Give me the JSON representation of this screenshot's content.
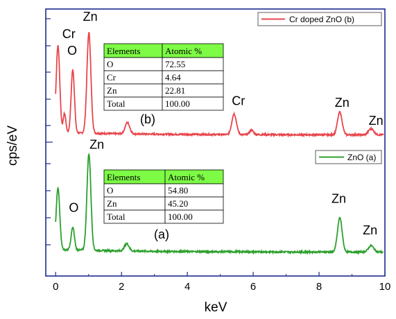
{
  "chart_data": {
    "type": "line",
    "xlabel": "keV",
    "ylabel": "cps/eV",
    "xlim": [
      -0.3,
      10
    ],
    "xticks": [
      0,
      2,
      4,
      6,
      8,
      10
    ],
    "grid": false,
    "legend_placement": "top-right",
    "panels": [
      {
        "id": "b",
        "panel_label": "(b)",
        "series_name": "Cr doped ZnO (b)",
        "color": "#e8454b",
        "peaks": [
          {
            "x": 0.07,
            "y": 1.0,
            "w": 0.055
          },
          {
            "x": 0.27,
            "y": 0.22,
            "w": 0.04
          },
          {
            "x": 0.52,
            "y": 0.73,
            "w": 0.05
          },
          {
            "x": 1.01,
            "y": 1.16,
            "w": 0.06
          },
          {
            "x": 2.18,
            "y": 0.13,
            "w": 0.07
          },
          {
            "x": 5.42,
            "y": 0.24,
            "w": 0.07
          },
          {
            "x": 5.95,
            "y": 0.05,
            "w": 0.06
          },
          {
            "x": 8.63,
            "y": 0.26,
            "w": 0.07
          },
          {
            "x": 9.58,
            "y": 0.07,
            "w": 0.08
          }
        ],
        "peak_labels": [
          {
            "text": "Cr",
            "x": 0.4,
            "y": 1.12
          },
          {
            "text": "O",
            "x": 0.5,
            "y": 0.93
          },
          {
            "text": "Zn",
            "x": 1.05,
            "y": 1.32
          },
          {
            "text": "Cr",
            "x": 5.55,
            "y": 0.35
          },
          {
            "text": "Zn",
            "x": 8.7,
            "y": 0.33
          },
          {
            "text": "Zn",
            "x": 9.73,
            "y": 0.12
          }
        ],
        "table": {
          "headers": [
            "Elements",
            "Atomic %"
          ],
          "rows": [
            [
              "O",
              "72.55"
            ],
            [
              "Cr",
              "4.64"
            ],
            [
              "Zn",
              "22.81"
            ],
            [
              "Total",
              "100.00"
            ]
          ]
        }
      },
      {
        "id": "a",
        "panel_label": "(a)",
        "series_name": "ZnO (a)",
        "color": "#2ca02c",
        "peaks": [
          {
            "x": 0.07,
            "y": 0.68,
            "w": 0.055
          },
          {
            "x": 0.52,
            "y": 0.25,
            "w": 0.05
          },
          {
            "x": 1.01,
            "y": 1.07,
            "w": 0.06
          },
          {
            "x": 2.16,
            "y": 0.08,
            "w": 0.07
          },
          {
            "x": 8.63,
            "y": 0.38,
            "w": 0.07
          },
          {
            "x": 9.58,
            "y": 0.07,
            "w": 0.08
          }
        ],
        "peak_labels": [
          {
            "text": "Zn",
            "x": 1.25,
            "y": 1.15
          },
          {
            "text": "O",
            "x": 0.55,
            "y": 0.45
          },
          {
            "text": "Zn",
            "x": 8.6,
            "y": 0.55
          },
          {
            "text": "Zn",
            "x": 9.55,
            "y": 0.2
          }
        ],
        "table": {
          "headers": [
            "Elements",
            "Atomic %"
          ],
          "rows": [
            [
              "O",
              "54.80"
            ],
            [
              "Zn",
              "45.20"
            ],
            [
              "Total",
              "100.00"
            ]
          ]
        }
      }
    ]
  }
}
